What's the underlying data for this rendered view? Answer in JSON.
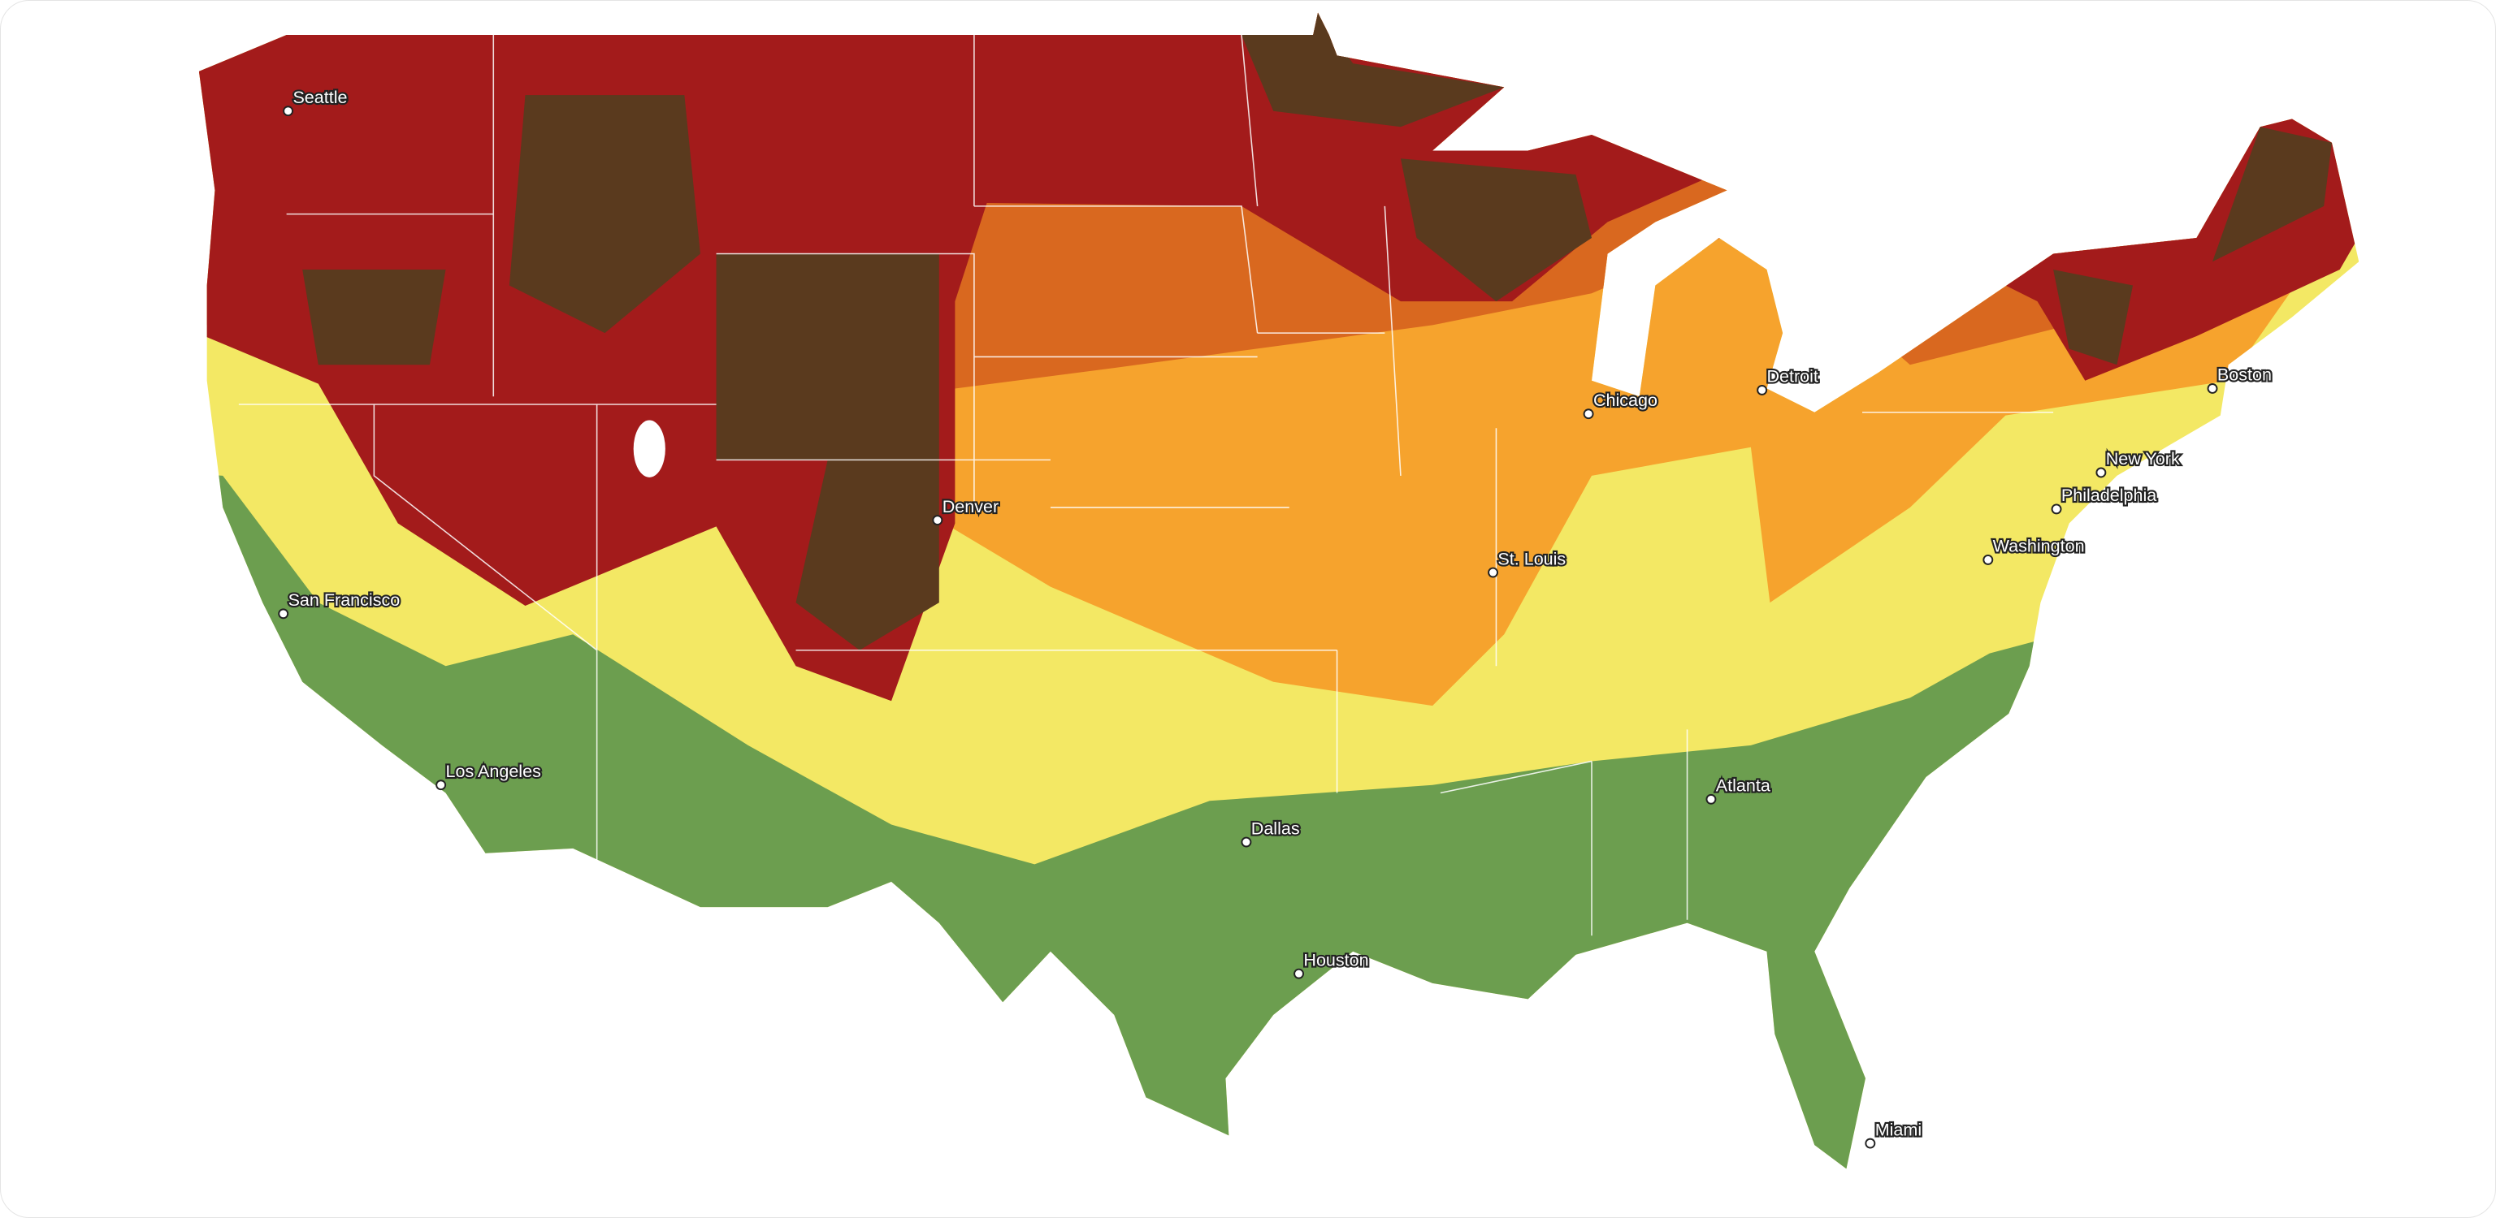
{
  "map": {
    "cities": [
      "Seattle",
      "San Francisco",
      "Los Angeles",
      "Denver",
      "Dallas",
      "Houston",
      "St. Louis",
      "Chicago",
      "Detroit",
      "Atlanta",
      "Miami",
      "Washington",
      "Philadelphia",
      "New York",
      "Boston"
    ]
  }
}
